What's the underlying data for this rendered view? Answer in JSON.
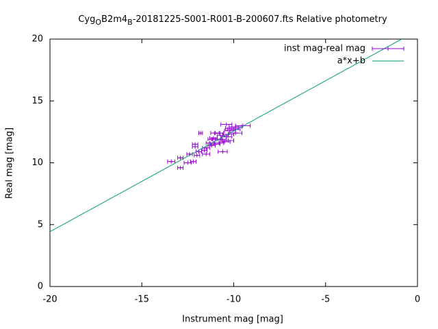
{
  "chart_data": {
    "type": "scatter",
    "title": [
      "Cyg",
      "O",
      "B2m4",
      "B",
      "-20181225-S001-R001-B-200607.fts Relative photometry"
    ],
    "x_label": "Instrument mag [mag]",
    "y_label": "Real mag [mag]",
    "xlim": [
      -20,
      0
    ],
    "ylim": [
      0,
      20
    ],
    "xticks": [
      -20,
      -15,
      -10,
      -5,
      0
    ],
    "yticks": [
      0,
      5,
      10,
      15,
      20
    ],
    "legend": "top-right",
    "series": [
      {
        "name": "inst mag-real mag",
        "color": "#9400d3",
        "kind": "xerrorbars",
        "x": [
          -13.4,
          -12.9,
          -12.9,
          -12.5,
          -12.4,
          -12.2,
          -12.1,
          -12.1,
          -12.0,
          -11.9,
          -11.8,
          -11.6,
          -11.5,
          -11.5,
          -11.3,
          -11.2,
          -11.1,
          -11.2,
          -11.0,
          -11.0,
          -10.9,
          -10.8,
          -10.8,
          -10.6,
          -10.6,
          -10.5,
          -10.4,
          -10.4,
          -10.3,
          -10.2,
          -10.1,
          -10.0,
          -9.9,
          -9.9,
          -9.5,
          -10.7,
          -10.3
        ],
        "values": [
          10.1,
          9.6,
          10.4,
          10.0,
          10.7,
          10.1,
          11.3,
          11.5,
          10.6,
          10.9,
          12.4,
          11.0,
          11.2,
          10.7,
          11.6,
          11.9,
          12.0,
          11.4,
          12.4,
          11.5,
          11.9,
          12.4,
          11.6,
          12.2,
          10.9,
          11.7,
          12.1,
          13.1,
          11.8,
          12.6,
          12.8,
          12.7,
          12.9,
          12.4,
          13.0,
          11.9,
          12.3
        ],
        "xerr": [
          0.2,
          0.15,
          0.15,
          0.2,
          0.15,
          0.15,
          0.15,
          0.15,
          0.15,
          0.15,
          0.1,
          0.15,
          0.2,
          0.2,
          0.2,
          0.2,
          0.2,
          0.2,
          0.25,
          0.25,
          0.25,
          0.25,
          0.25,
          0.3,
          0.25,
          0.3,
          0.3,
          0.3,
          0.3,
          0.3,
          0.35,
          0.35,
          0.35,
          0.35,
          0.4,
          0.3,
          0.3
        ]
      },
      {
        "name": "a*x+b",
        "color": "#009e73",
        "kind": "line",
        "x": [
          -20,
          -0.86
        ],
        "values": [
          4.43,
          20
        ]
      }
    ]
  }
}
